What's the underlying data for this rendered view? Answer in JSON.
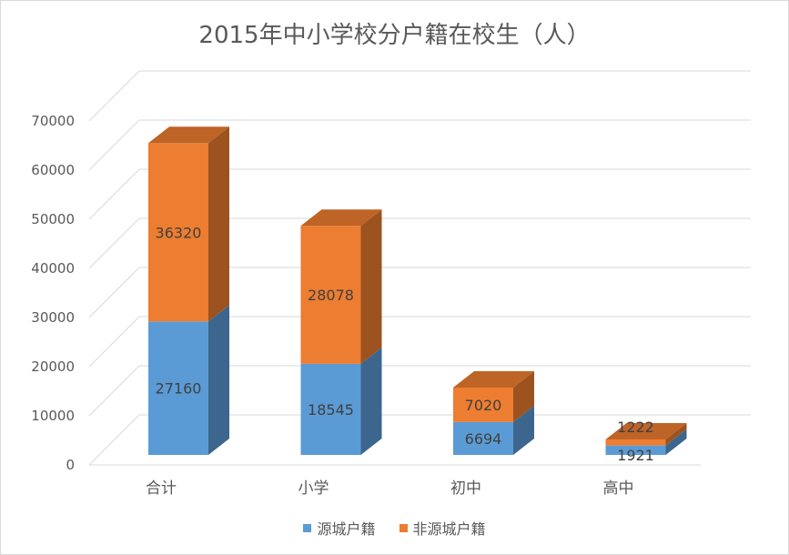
{
  "chart_data": {
    "type": "bar",
    "stacked": true,
    "three_d": true,
    "title": "2015年中小学校分户籍在校生（人）",
    "categories": [
      "合计",
      "小学",
      "初中",
      "高中"
    ],
    "series": [
      {
        "name": "源城户籍",
        "values": [
          27160,
          18545,
          6694,
          1921
        ],
        "color": "#5b9bd5"
      },
      {
        "name": "非源城户籍",
        "values": [
          36320,
          28078,
          7020,
          1222
        ],
        "color": "#ed7d31"
      }
    ],
    "ylim": [
      0,
      70000
    ],
    "yticks": [
      "0",
      "10000",
      "20000",
      "30000",
      "40000",
      "50000",
      "60000",
      "70000"
    ],
    "grid": true,
    "legend_position": "bottom"
  }
}
